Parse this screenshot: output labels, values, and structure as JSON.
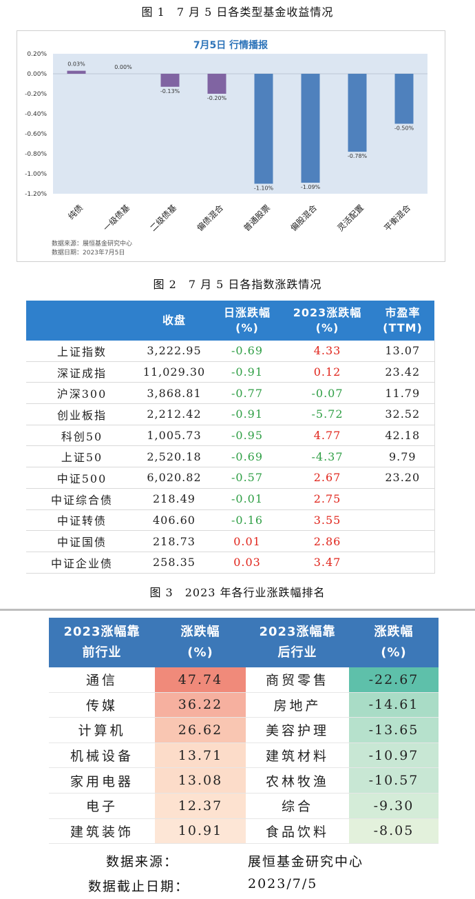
{
  "figure1": {
    "caption": "图 1　7 月 5 日各类型基金收益情况",
    "title": "7月5日  行情播报",
    "source_line": "数据来源：展恒基金研究中心",
    "date_line": "数据日期：2023年7月5日",
    "chart_data": {
      "type": "bar",
      "title": "7月5日  行情播报",
      "categories": [
        "纯债",
        "一级债基",
        "二级债基",
        "偏债混合",
        "普通股票",
        "偏股混合",
        "灵活配置",
        "平衡混合"
      ],
      "values": [
        0.03,
        0.0,
        -0.13,
        -0.2,
        -1.1,
        -1.09,
        -0.78,
        -0.5
      ],
      "value_labels": [
        "0.03%",
        "0.00%",
        "-0.13%",
        "-0.20%",
        "-1.10%",
        "-1.09%",
        "-0.78%",
        "-0.50%"
      ],
      "bar_colors": [
        "#8064a2",
        "#8064a2",
        "#8064a2",
        "#8064a2",
        "#4f81bd",
        "#4f81bd",
        "#4f81bd",
        "#4f81bd"
      ],
      "ylim": [
        -1.2,
        0.2
      ],
      "yticks": [
        "0.20%",
        "0.00%",
        "-0.20%",
        "-0.40%",
        "-0.60%",
        "-0.80%",
        "-1.00%",
        "-1.20%"
      ],
      "ytick_values": [
        0.2,
        0.0,
        -0.2,
        -0.4,
        -0.6,
        -0.8,
        -1.0,
        -1.2
      ],
      "plot_background": "#dce6f2",
      "grid": false
    }
  },
  "figure2": {
    "caption": "图 2　7 月 5 日各指数涨跌情况",
    "headers": [
      "",
      "收盘",
      "日涨跌幅\n(%)",
      "2023涨跌幅\n(%)",
      "市盈率\n(TTM)"
    ],
    "rows": [
      {
        "name": "上证指数",
        "close": "3,222.95",
        "day": "-0.69",
        "ytd": "4.33",
        "pe": "13.07"
      },
      {
        "name": "深证成指",
        "close": "11,029.30",
        "day": "-0.91",
        "ytd": "0.12",
        "pe": "23.42"
      },
      {
        "name": "沪深300",
        "close": "3,868.81",
        "day": "-0.77",
        "ytd": "-0.07",
        "pe": "11.79"
      },
      {
        "name": "创业板指",
        "close": "2,212.42",
        "day": "-0.91",
        "ytd": "-5.72",
        "pe": "32.52"
      },
      {
        "name": "科创50",
        "close": "1,005.73",
        "day": "-0.95",
        "ytd": "4.77",
        "pe": "42.18"
      },
      {
        "name": "上证50",
        "close": "2,520.18",
        "day": "-0.69",
        "ytd": "-4.37",
        "pe": "9.79"
      },
      {
        "name": "中证500",
        "close": "6,020.82",
        "day": "-0.57",
        "ytd": "2.67",
        "pe": "23.20"
      },
      {
        "name": "中证综合债",
        "close": "218.49",
        "day": "-0.01",
        "ytd": "2.75",
        "pe": ""
      },
      {
        "name": "中证转债",
        "close": "406.60",
        "day": "-0.16",
        "ytd": "3.55",
        "pe": ""
      },
      {
        "name": "中证国债",
        "close": "218.73",
        "day": "0.01",
        "ytd": "2.86",
        "pe": ""
      },
      {
        "name": "中证企业债",
        "close": "258.35",
        "day": "0.03",
        "ytd": "3.47",
        "pe": ""
      }
    ],
    "colors": {
      "header": "#2f80cc",
      "negative": "#2e9e44",
      "positive": "#e0241b"
    }
  },
  "figure3": {
    "caption": "图 3　2023 年各行业涨跌幅排名",
    "headers": [
      "2023涨幅靠\n前行业",
      "涨跌幅\n(%)",
      "2023涨幅靠\n后行业",
      "涨跌幅\n(%)"
    ],
    "rows": [
      {
        "top": "通信",
        "top_val": "47.74",
        "bottom": "商贸零售",
        "bottom_val": "-22.67"
      },
      {
        "top": "传媒",
        "top_val": "36.22",
        "bottom": "房地产",
        "bottom_val": "-14.61"
      },
      {
        "top": "计算机",
        "top_val": "26.62",
        "bottom": "美容护理",
        "bottom_val": "-13.65"
      },
      {
        "top": "机械设备",
        "top_val": "13.71",
        "bottom": "建筑材料",
        "bottom_val": "-10.97"
      },
      {
        "top": "家用电器",
        "top_val": "13.08",
        "bottom": "农林牧渔",
        "bottom_val": "-10.57"
      },
      {
        "top": "电子",
        "top_val": "12.37",
        "bottom": "综合",
        "bottom_val": "-9.30"
      },
      {
        "top": "建筑装饰",
        "top_val": "10.91",
        "bottom": "食品饮料",
        "bottom_val": "-8.05"
      }
    ],
    "top_colors": [
      "#f08a7a",
      "#f6b09f",
      "#f9c6b2",
      "#fcdcc9",
      "#fcdcc9",
      "#fde2d0",
      "#fde6d6"
    ],
    "bottom_colors": [
      "#5ec0aa",
      "#a9dcc6",
      "#b6e1cc",
      "#c8e7d4",
      "#c8e7d4",
      "#d4ecd8",
      "#e3f1dc"
    ],
    "header_color": "#3c78b8",
    "source_label": "数据来源：",
    "source_value": "展恒基金研究中心",
    "date_label": "数据截止日期：",
    "date_value": "2023/7/5"
  }
}
